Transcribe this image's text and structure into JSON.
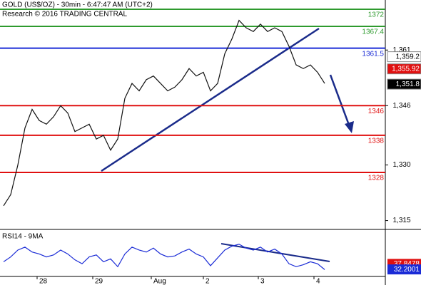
{
  "chart_data": [
    {
      "type": "line",
      "title": "GOLD (US$/OZ) - 30min - 6:47:47 AM (UTC+2)",
      "subtitle": "Research © 2016 TRADING CENTRAL",
      "xlim": [
        0,
        53.5
      ],
      "ylim": [
        1313,
        1374.5
      ],
      "yticks": [
        {
          "value": 1361,
          "label": "1,361"
        },
        {
          "value": 1346,
          "label": "1,346"
        },
        {
          "value": 1330,
          "label": "1,330"
        },
        {
          "value": 1315,
          "label": "1,315"
        }
      ],
      "series": [
        {
          "name": "GOLD",
          "color": "#111111",
          "values": [
            1319,
            1322,
            1330,
            1340,
            1345,
            1342,
            1341,
            1343,
            1346,
            1344,
            1339,
            1340,
            1341,
            1337,
            1338,
            1334,
            1337,
            1348,
            1352,
            1350,
            1353,
            1354,
            1352,
            1350,
            1351,
            1353,
            1356,
            1354,
            1355,
            1350,
            1352,
            1360,
            1364,
            1369,
            1367,
            1366,
            1368,
            1366,
            1367,
            1366,
            1362,
            1357,
            1356,
            1357,
            1355,
            1352
          ]
        }
      ],
      "levels": [
        {
          "value": 1372,
          "color": "#2e9a2e"
        },
        {
          "value": 1367.4,
          "color": "#2e9a2e"
        },
        {
          "value": 1361.5,
          "color": "#1a2bd6"
        },
        {
          "value": 1346,
          "color": "#e01010"
        },
        {
          "value": 1338,
          "color": "#e01010"
        },
        {
          "value": 1328,
          "color": "#e01010"
        }
      ],
      "price_tags": [
        {
          "value": 1359.2,
          "label": "1,359.2",
          "color": "#ffffff",
          "text_color": "#000000"
        },
        {
          "value": 1355.92,
          "label": "1,355.92",
          "color": "#e01010",
          "text_color": "#ffffff"
        },
        {
          "value": 1351.8,
          "label": "1,351.8",
          "color": "#000000",
          "text_color": "#ffffff"
        }
      ]
    },
    {
      "type": "line",
      "title": "RSI14 - 9MA",
      "xlim": [
        0,
        53.5
      ],
      "ylim": [
        25,
        60
      ],
      "xticks": [
        {
          "value": 4.7,
          "label": "28"
        },
        {
          "value": 12.5,
          "label": "29"
        },
        {
          "value": 20.7,
          "label": "Aug"
        },
        {
          "value": 28,
          "label": "2"
        },
        {
          "value": 35.7,
          "label": "3"
        },
        {
          "value": 43.5,
          "label": "4"
        }
      ],
      "series": [
        {
          "name": "RSI14",
          "color": "#1a2bd6",
          "values": [
            40,
            45,
            52,
            55,
            50,
            48,
            45,
            47,
            52,
            48,
            42,
            38,
            45,
            47,
            40,
            43,
            35,
            48,
            55,
            52,
            50,
            54,
            48,
            45,
            46,
            50,
            53,
            48,
            45,
            36,
            44,
            52,
            56,
            58,
            54,
            52,
            55,
            50,
            53,
            48,
            38,
            35,
            37,
            40,
            38,
            32
          ]
        }
      ],
      "tags": [
        {
          "value": 37.8478,
          "color": "#e01010"
        },
        {
          "value": 32.2001,
          "color": "#1a2bd6"
        }
      ]
    }
  ]
}
